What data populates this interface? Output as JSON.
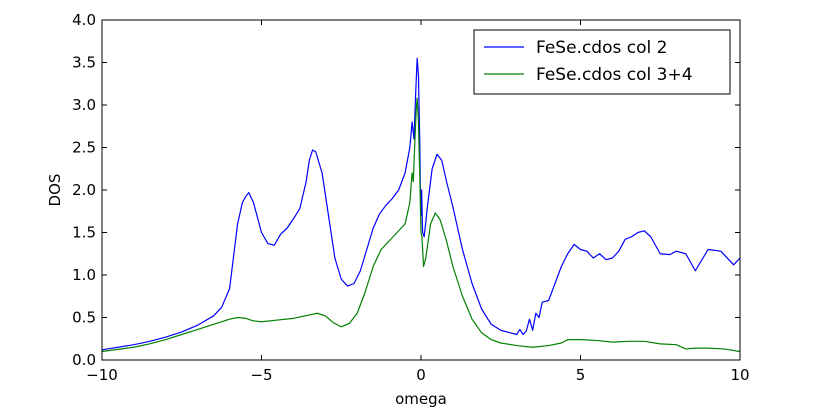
{
  "chart_data": {
    "type": "line",
    "xlabel": "omega",
    "ylabel": "DOS",
    "xlim": [
      -10,
      10
    ],
    "ylim": [
      0.0,
      4.0
    ],
    "x_ticks": [
      "−10",
      "−5",
      "0",
      "5",
      "10"
    ],
    "x_tick_values": [
      -10,
      -5,
      0,
      5,
      10
    ],
    "y_ticks": [
      "0.0",
      "0.5",
      "1.0",
      "1.5",
      "2.0",
      "2.5",
      "3.0",
      "3.5",
      "4.0"
    ],
    "y_tick_values": [
      0,
      0.5,
      1.0,
      1.5,
      2.0,
      2.5,
      3.0,
      3.5,
      4.0
    ],
    "legend_position": "top-right",
    "grid": false,
    "series": [
      {
        "name": "FeSe.cdos col 2",
        "color": "#0000ff",
        "points": [
          [
            -10,
            0.12
          ],
          [
            -9,
            0.18
          ],
          [
            -8.5,
            0.22
          ],
          [
            -8,
            0.27
          ],
          [
            -7.5,
            0.33
          ],
          [
            -7,
            0.41
          ],
          [
            -6.5,
            0.52
          ],
          [
            -6.25,
            0.62
          ],
          [
            -6,
            0.84
          ],
          [
            -5.75,
            1.6
          ],
          [
            -5.6,
            1.85
          ],
          [
            -5.5,
            1.92
          ],
          [
            -5.4,
            1.97
          ],
          [
            -5.25,
            1.85
          ],
          [
            -5,
            1.5
          ],
          [
            -4.8,
            1.37
          ],
          [
            -4.6,
            1.35
          ],
          [
            -4.4,
            1.48
          ],
          [
            -4.2,
            1.55
          ],
          [
            -4,
            1.66
          ],
          [
            -3.8,
            1.78
          ],
          [
            -3.6,
            2.1
          ],
          [
            -3.5,
            2.35
          ],
          [
            -3.4,
            2.47
          ],
          [
            -3.3,
            2.45
          ],
          [
            -3.1,
            2.2
          ],
          [
            -2.9,
            1.7
          ],
          [
            -2.7,
            1.2
          ],
          [
            -2.5,
            0.95
          ],
          [
            -2.3,
            0.87
          ],
          [
            -2.1,
            0.9
          ],
          [
            -1.9,
            1.05
          ],
          [
            -1.7,
            1.3
          ],
          [
            -1.5,
            1.55
          ],
          [
            -1.3,
            1.72
          ],
          [
            -1.1,
            1.82
          ],
          [
            -0.9,
            1.9
          ],
          [
            -0.7,
            2.0
          ],
          [
            -0.5,
            2.2
          ],
          [
            -0.35,
            2.5
          ],
          [
            -0.28,
            2.8
          ],
          [
            -0.22,
            2.6
          ],
          [
            -0.16,
            3.2
          ],
          [
            -0.12,
            3.55
          ],
          [
            -0.08,
            3.35
          ],
          [
            -0.04,
            2.6
          ],
          [
            -0.02,
            2.0
          ],
          [
            0.0,
            1.7
          ],
          [
            0.02,
            2.0
          ],
          [
            0.05,
            1.5
          ],
          [
            0.1,
            1.45
          ],
          [
            0.2,
            1.8
          ],
          [
            0.35,
            2.25
          ],
          [
            0.5,
            2.42
          ],
          [
            0.65,
            2.35
          ],
          [
            0.8,
            2.1
          ],
          [
            1.0,
            1.8
          ],
          [
            1.3,
            1.3
          ],
          [
            1.6,
            0.9
          ],
          [
            1.9,
            0.6
          ],
          [
            2.2,
            0.42
          ],
          [
            2.5,
            0.35
          ],
          [
            2.8,
            0.32
          ],
          [
            3.0,
            0.3
          ],
          [
            3.1,
            0.36
          ],
          [
            3.2,
            0.3
          ],
          [
            3.3,
            0.34
          ],
          [
            3.4,
            0.48
          ],
          [
            3.5,
            0.35
          ],
          [
            3.6,
            0.55
          ],
          [
            3.7,
            0.5
          ],
          [
            3.8,
            0.68
          ],
          [
            4.0,
            0.7
          ],
          [
            4.2,
            0.9
          ],
          [
            4.4,
            1.1
          ],
          [
            4.6,
            1.25
          ],
          [
            4.8,
            1.36
          ],
          [
            5.0,
            1.3
          ],
          [
            5.2,
            1.28
          ],
          [
            5.4,
            1.2
          ],
          [
            5.6,
            1.25
          ],
          [
            5.8,
            1.18
          ],
          [
            6.0,
            1.2
          ],
          [
            6.2,
            1.28
          ],
          [
            6.4,
            1.42
          ],
          [
            6.6,
            1.45
          ],
          [
            6.8,
            1.5
          ],
          [
            7.0,
            1.52
          ],
          [
            7.2,
            1.45
          ],
          [
            7.5,
            1.25
          ],
          [
            7.8,
            1.24
          ],
          [
            8.0,
            1.28
          ],
          [
            8.3,
            1.25
          ],
          [
            8.6,
            1.05
          ],
          [
            9.0,
            1.3
          ],
          [
            9.4,
            1.28
          ],
          [
            9.8,
            1.12
          ],
          [
            10.0,
            1.2
          ]
        ]
      },
      {
        "name": "FeSe.cdos col 3+4",
        "color": "#008000",
        "points": [
          [
            -10,
            0.1
          ],
          [
            -9,
            0.15
          ],
          [
            -8.5,
            0.19
          ],
          [
            -8,
            0.24
          ],
          [
            -7.5,
            0.3
          ],
          [
            -7,
            0.36
          ],
          [
            -6.5,
            0.42
          ],
          [
            -6,
            0.48
          ],
          [
            -5.75,
            0.5
          ],
          [
            -5.5,
            0.49
          ],
          [
            -5.25,
            0.46
          ],
          [
            -5,
            0.45
          ],
          [
            -4.5,
            0.47
          ],
          [
            -4,
            0.49
          ],
          [
            -3.5,
            0.53
          ],
          [
            -3.25,
            0.55
          ],
          [
            -3,
            0.52
          ],
          [
            -2.75,
            0.44
          ],
          [
            -2.5,
            0.39
          ],
          [
            -2.25,
            0.43
          ],
          [
            -2,
            0.55
          ],
          [
            -1.75,
            0.8
          ],
          [
            -1.5,
            1.1
          ],
          [
            -1.25,
            1.3
          ],
          [
            -1.0,
            1.4
          ],
          [
            -0.75,
            1.5
          ],
          [
            -0.5,
            1.6
          ],
          [
            -0.35,
            1.85
          ],
          [
            -0.28,
            2.2
          ],
          [
            -0.24,
            2.1
          ],
          [
            -0.2,
            2.5
          ],
          [
            -0.15,
            2.95
          ],
          [
            -0.12,
            3.08
          ],
          [
            -0.08,
            2.8
          ],
          [
            -0.04,
            2.2
          ],
          [
            0.0,
            1.5
          ],
          [
            0.03,
            1.45
          ],
          [
            0.08,
            1.1
          ],
          [
            0.15,
            1.2
          ],
          [
            0.3,
            1.6
          ],
          [
            0.45,
            1.73
          ],
          [
            0.6,
            1.65
          ],
          [
            0.8,
            1.4
          ],
          [
            1.0,
            1.1
          ],
          [
            1.3,
            0.75
          ],
          [
            1.6,
            0.48
          ],
          [
            1.9,
            0.32
          ],
          [
            2.2,
            0.24
          ],
          [
            2.5,
            0.2
          ],
          [
            3.0,
            0.17
          ],
          [
            3.5,
            0.15
          ],
          [
            4.0,
            0.17
          ],
          [
            4.4,
            0.2
          ],
          [
            4.6,
            0.24
          ],
          [
            5.0,
            0.24
          ],
          [
            5.5,
            0.23
          ],
          [
            6.0,
            0.21
          ],
          [
            6.5,
            0.22
          ],
          [
            7.0,
            0.22
          ],
          [
            7.5,
            0.19
          ],
          [
            8.0,
            0.18
          ],
          [
            8.3,
            0.13
          ],
          [
            8.6,
            0.14
          ],
          [
            9.0,
            0.14
          ],
          [
            9.5,
            0.13
          ],
          [
            10.0,
            0.1
          ]
        ]
      }
    ]
  }
}
